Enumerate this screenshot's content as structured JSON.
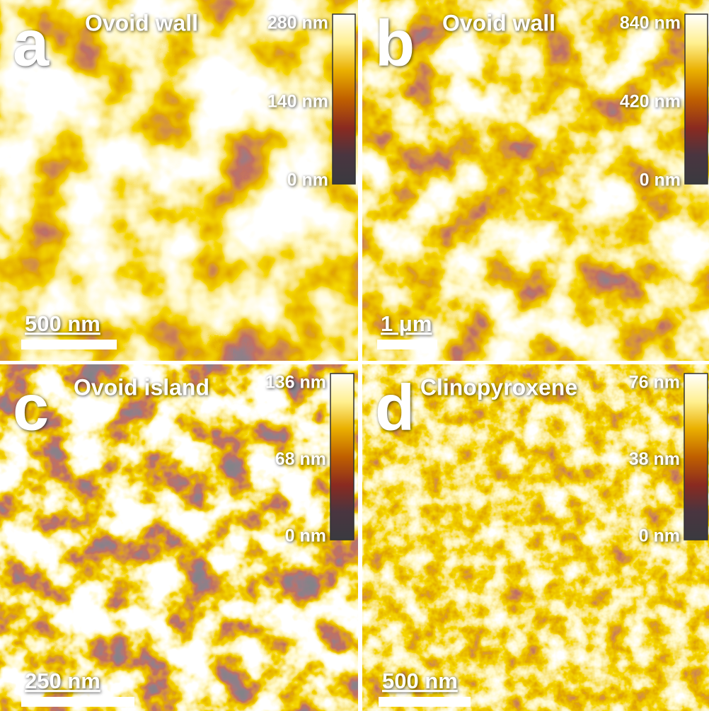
{
  "panels": [
    {
      "letter": "a",
      "title": "Ovoid wall",
      "colorbar": {
        "top": "280 nm",
        "middle": "140 nm",
        "bottom": "0 nm"
      },
      "scale_bar": "500 nm"
    },
    {
      "letter": "b",
      "title": "Ovoid wall",
      "colorbar": {
        "top": "840 nm",
        "middle": "420 nm",
        "bottom": "0 nm"
      },
      "scale_bar": "1 μm"
    },
    {
      "letter": "c",
      "title": "Ovoid island",
      "colorbar": {
        "top": "136 nm",
        "middle": "68 nm",
        "bottom": "0 nm"
      },
      "scale_bar": "250 nm"
    },
    {
      "letter": "d",
      "title": "Clinopyroxene",
      "colorbar": {
        "top": "76 nm",
        "middle": "38 nm",
        "bottom": "0 nm"
      },
      "scale_bar": "500 nm"
    }
  ]
}
